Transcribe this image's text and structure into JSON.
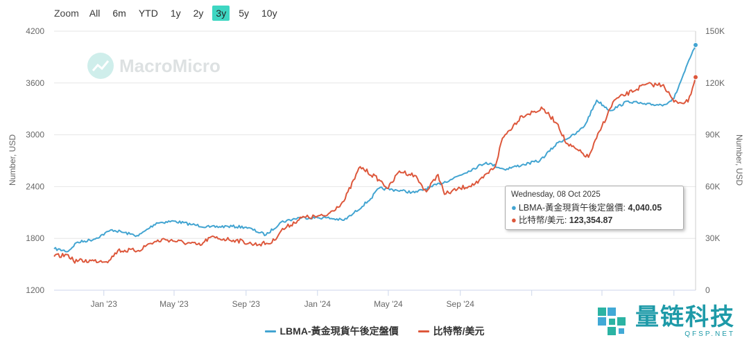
{
  "zoom": {
    "label": "Zoom",
    "options": [
      "All",
      "6m",
      "YTD",
      "1y",
      "2y",
      "3y",
      "5y",
      "10y"
    ],
    "active": "3y",
    "active_color": "#3ed6c2"
  },
  "watermark": {
    "text": "MacroMicro",
    "icon": "macromicro-logo-icon"
  },
  "corner_logo": {
    "cn": "量链科技",
    "en": "QFSP.NET",
    "icon": "qfsp-logo-icon"
  },
  "tooltip": {
    "date": "Wednesday, 08 Oct 2025",
    "rows": [
      {
        "label": "LBMA-黃金現貨午後定盤價: ",
        "value": "4,040.05",
        "color": "#42a4d1"
      },
      {
        "label": "比特幣/美元: ",
        "value": "123,354.87",
        "color": "#dd573b"
      }
    ]
  },
  "chart_data": {
    "type": "line",
    "xlabel": "",
    "y_left": {
      "label": "Number, USD",
      "min": 1200,
      "max": 4200,
      "ticks": [
        "1200",
        "1800",
        "2400",
        "3000",
        "3600",
        "4200"
      ]
    },
    "y_right": {
      "label": "Number, USD",
      "min": 0,
      "max": 150000,
      "ticks": [
        "0",
        "30K",
        "60K",
        "90K",
        "120K",
        "150K"
      ]
    },
    "x_ticks": [
      "Jan '23",
      "May '23",
      "Sep '23",
      "Jan '24",
      "May '24",
      "Sep '24"
    ],
    "x_range": [
      "2022-10-08",
      "2025-10-08"
    ],
    "grid": "horizontal",
    "legend_position": "bottom-center",
    "series": [
      {
        "name": "LBMA-黃金現貨午後定盤價",
        "axis": "left",
        "color": "#42a4d1",
        "x": [
          "2022-10-08",
          "2022-11-01",
          "2022-11-15",
          "2022-12-15",
          "2023-01-15",
          "2023-02-15",
          "2023-03-01",
          "2023-04-01",
          "2023-05-01",
          "2023-06-01",
          "2023-07-01",
          "2023-08-01",
          "2023-09-01",
          "2023-10-05",
          "2023-10-31",
          "2023-12-01",
          "2024-01-15",
          "2024-02-15",
          "2024-03-01",
          "2024-04-01",
          "2024-04-15",
          "2024-05-15",
          "2024-06-15",
          "2024-07-15",
          "2024-08-15",
          "2024-09-15",
          "2024-10-15",
          "2024-11-15",
          "2024-12-15",
          "2025-01-15",
          "2025-02-15",
          "2025-03-15",
          "2025-04-01",
          "2025-04-22",
          "2025-05-15",
          "2025-06-15",
          "2025-07-15",
          "2025-08-15",
          "2025-09-01",
          "2025-09-15",
          "2025-10-08"
        ],
        "values": [
          1680,
          1650,
          1750,
          1790,
          1900,
          1850,
          1830,
          1980,
          2000,
          1960,
          1930,
          1940,
          1930,
          1840,
          1990,
          2040,
          2040,
          2010,
          2080,
          2260,
          2380,
          2360,
          2330,
          2400,
          2480,
          2580,
          2680,
          2600,
          2650,
          2700,
          2910,
          3000,
          3100,
          3400,
          3280,
          3390,
          3350,
          3350,
          3420,
          3660,
          4040
        ]
      },
      {
        "name": "比特幣/美元",
        "axis": "right",
        "color": "#dd573b",
        "x": [
          "2022-10-08",
          "2022-11-01",
          "2022-11-10",
          "2022-12-15",
          "2023-01-10",
          "2023-01-25",
          "2023-03-01",
          "2023-03-20",
          "2023-04-15",
          "2023-06-15",
          "2023-07-01",
          "2023-08-15",
          "2023-09-15",
          "2023-10-15",
          "2023-10-31",
          "2023-12-05",
          "2024-01-15",
          "2024-02-15",
          "2024-03-14",
          "2024-04-15",
          "2024-05-01",
          "2024-05-20",
          "2024-06-15",
          "2024-07-05",
          "2024-07-25",
          "2024-08-05",
          "2024-09-01",
          "2024-10-01",
          "2024-10-31",
          "2024-11-12",
          "2024-12-15",
          "2025-01-20",
          "2025-02-15",
          "2025-03-01",
          "2025-04-08",
          "2025-05-01",
          "2025-05-22",
          "2025-07-14",
          "2025-08-14",
          "2025-09-01",
          "2025-09-25",
          "2025-10-08"
        ],
        "values": [
          19500,
          20500,
          17000,
          17000,
          17200,
          23000,
          23000,
          27000,
          29500,
          26000,
          30500,
          29000,
          26500,
          27500,
          34500,
          42000,
          43000,
          51500,
          71500,
          64000,
          59000,
          69000,
          66500,
          57000,
          67000,
          55500,
          59000,
          62000,
          72000,
          88000,
          101000,
          105000,
          96000,
          85000,
          77000,
          95000,
          110000,
          119000,
          119000,
          109000,
          109000,
          123354
        ]
      }
    ]
  }
}
